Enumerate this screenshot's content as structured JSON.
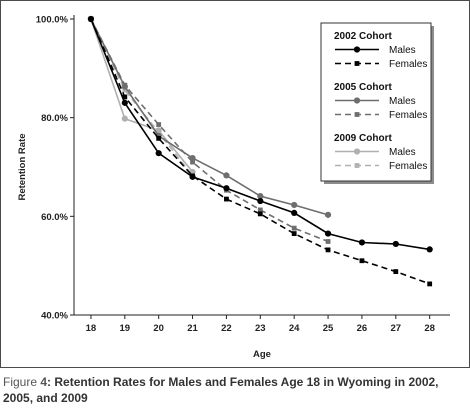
{
  "caption": {
    "label": "Figure",
    "number": "4",
    "separator": ":",
    "text": "Retention Rates for Males and Females Age 18 in Wyoming in 2002, 2005, and 2009"
  },
  "chart_data": {
    "type": "line",
    "title": "",
    "xlabel": "Age",
    "ylabel": "Retention Rate",
    "x": [
      18,
      19,
      20,
      21,
      22,
      23,
      24,
      25,
      26,
      27,
      28
    ],
    "xlim": [
      17.5,
      28.6
    ],
    "ylim": [
      40,
      100
    ],
    "yticks": [
      40,
      60,
      80,
      100
    ],
    "ytick_labels": [
      "40.0%",
      "60.0%",
      "80.0%",
      "100.0%"
    ],
    "grid": false,
    "legend_position": "top-right",
    "legend_groups": [
      {
        "title": "2002 Cohort",
        "series": [
          0,
          1
        ]
      },
      {
        "title": "2005 Cohort",
        "series": [
          2,
          3
        ]
      },
      {
        "title": "2009 Cohort",
        "series": [
          4,
          5
        ]
      }
    ],
    "series": [
      {
        "name": "Males",
        "cohort": "2002",
        "color": "#000000",
        "dash": "solid",
        "marker": "circle",
        "values": [
          100,
          83.0,
          72.8,
          68.0,
          65.7,
          63.1,
          60.7,
          56.5,
          54.7,
          54.4,
          53.3
        ]
      },
      {
        "name": "Females",
        "cohort": "2002",
        "color": "#000000",
        "dash": "dashed",
        "marker": "square",
        "values": [
          100,
          84.2,
          75.8,
          68.2,
          63.5,
          60.5,
          56.5,
          53.2,
          51.0,
          48.8,
          46.3
        ]
      },
      {
        "name": "Males",
        "cohort": "2005",
        "color": "#6e6e6e",
        "dash": "solid",
        "marker": "circle",
        "values": [
          100,
          86.3,
          76.3,
          71.8,
          68.3,
          64.1,
          62.3,
          60.3,
          null,
          null,
          null
        ]
      },
      {
        "name": "Females",
        "cohort": "2005",
        "color": "#6e6e6e",
        "dash": "dashed",
        "marker": "square",
        "values": [
          100,
          86.6,
          78.6,
          71.0,
          65.3,
          61.3,
          57.6,
          54.9,
          null,
          null,
          null
        ]
      },
      {
        "name": "Males",
        "cohort": "2009",
        "color": "#b0b0b0",
        "dash": "solid",
        "marker": "circle",
        "values": [
          100,
          79.8,
          77.4,
          69.0,
          null,
          null,
          null,
          null,
          null,
          null,
          null
        ]
      },
      {
        "name": "Females",
        "cohort": "2009",
        "color": "#b0b0b0",
        "dash": "dashed",
        "marker": "square",
        "values": [
          100,
          85.6,
          77.0,
          68.2,
          null,
          null,
          null,
          null,
          null,
          null,
          null
        ]
      }
    ]
  }
}
